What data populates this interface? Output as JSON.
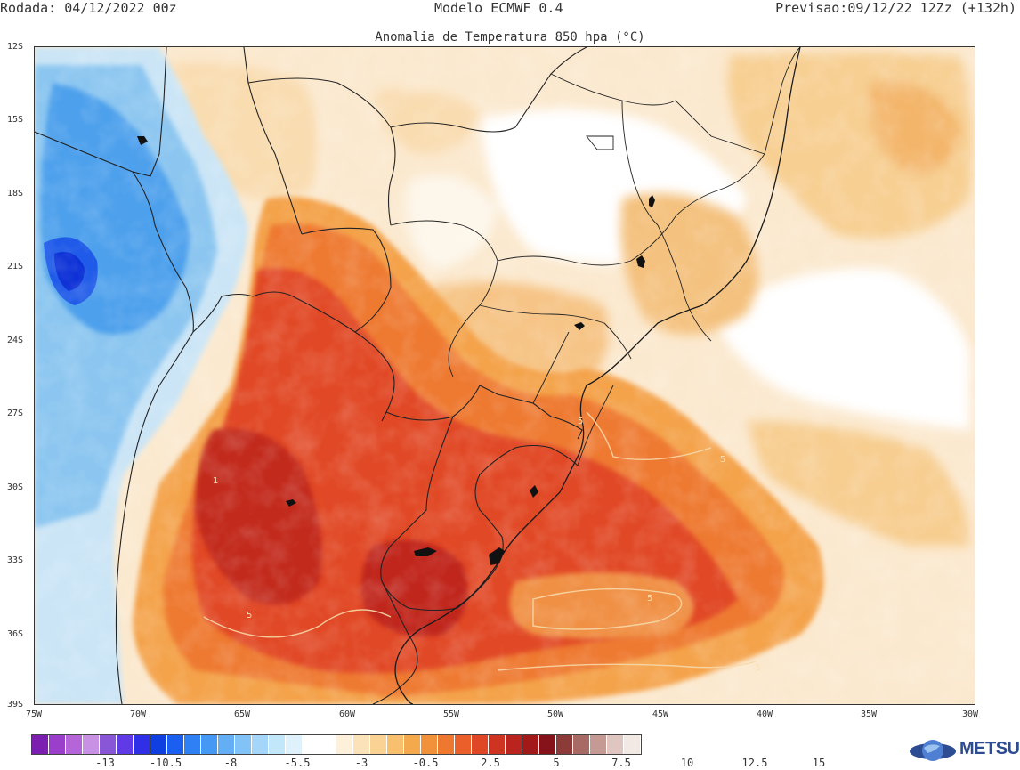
{
  "header": {
    "run_label": "Rodada: 04/12/2022 00z",
    "model_label": "Modelo ECMWF 0.4",
    "forecast_label": "Previsao:09/12/22 12Zz (+132h)"
  },
  "map": {
    "title": "Anomalia de Temperatura 850 hpa (°C)",
    "lat_labels": [
      "12S",
      "15S",
      "18S",
      "21S",
      "24S",
      "27S",
      "30S",
      "33S",
      "36S",
      "39S"
    ],
    "lon_labels": [
      "75W",
      "70W",
      "65W",
      "60W",
      "55W",
      "50W",
      "45W",
      "40W",
      "35W",
      "30W"
    ],
    "contour_labels": [
      "5",
      "5",
      "5",
      "5",
      "5",
      "1"
    ]
  },
  "colorbar": {
    "colors": [
      "#7a1fb0",
      "#9a3fcc",
      "#b565d8",
      "#c991e4",
      "#8a56d8",
      "#5f3ae6",
      "#2f2fe8",
      "#0f3fe0",
      "#1a5ff0",
      "#2f7ff5",
      "#4698f5",
      "#63aef5",
      "#82c3f7",
      "#a3d6f8",
      "#c2e6fa",
      "#dff2fb",
      "#ffffff",
      "#ffffff",
      "#fdf1dc",
      "#fbe2b8",
      "#f9d294",
      "#f7bf6e",
      "#f4aa4c",
      "#f1923a",
      "#ee7830",
      "#ea5f2a",
      "#e04726",
      "#cf3322",
      "#bb231e",
      "#a2191a",
      "#86131a",
      "#8d3b38",
      "#a86a65",
      "#c59a94",
      "#dfc6c0",
      "#f3e9e4"
    ],
    "labels": [
      "-13",
      "-10.5",
      "-8",
      "-5.5",
      "-3",
      "-0.5",
      "2.5",
      "5",
      "7.5",
      "10",
      "12.5",
      "15"
    ]
  },
  "logo": {
    "text": "METSUL"
  }
}
